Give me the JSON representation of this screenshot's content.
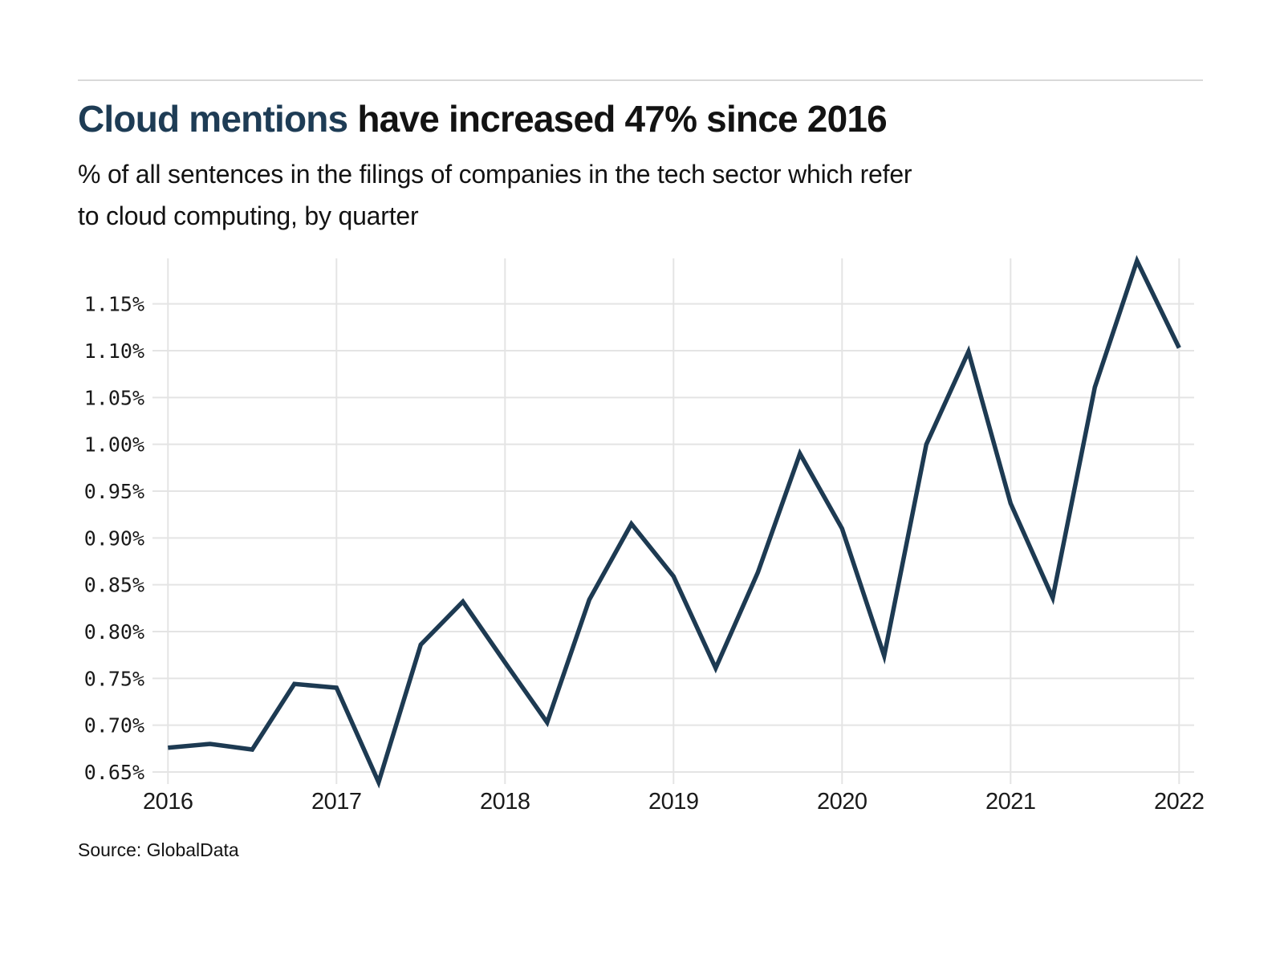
{
  "page": {
    "title_highlight": "Cloud mentions",
    "title_rest": " have increased 47% since 2016",
    "subtitle_line1": "% of all sentences in the filings of companies in the tech sector which refer",
    "subtitle_line2": "to cloud computing, by quarter",
    "source": "Source: GlobalData"
  },
  "colors": {
    "accent_navy": "#1e3c55",
    "line": "#1d3a52",
    "grid": "#e4e4e4",
    "divider": "#d9d9d9",
    "text": "#131313"
  },
  "chart_data": {
    "type": "line",
    "title": "Cloud mentions have increased 47% since 2016",
    "subtitle": "% of all sentences in the filings of companies in the tech sector which refer to cloud computing, by quarter",
    "source": "Source: GlobalData",
    "unit": "%",
    "x": [
      "2016 Q1",
      "2016 Q2",
      "2016 Q3",
      "2016 Q4",
      "2017 Q1",
      "2017 Q2",
      "2017 Q3",
      "2017 Q4",
      "2018 Q1",
      "2018 Q2",
      "2018 Q3",
      "2018 Q4",
      "2019 Q1",
      "2019 Q2",
      "2019 Q3",
      "2019 Q4",
      "2020 Q1",
      "2020 Q2",
      "2020 Q3",
      "2020 Q4",
      "2021 Q1",
      "2021 Q2",
      "2021 Q3",
      "2021 Q4",
      "2022 Q1"
    ],
    "values": [
      0.676,
      0.68,
      0.674,
      0.744,
      0.74,
      0.639,
      0.786,
      0.832,
      0.767,
      0.703,
      0.834,
      0.915,
      0.859,
      0.761,
      0.863,
      0.99,
      0.91,
      0.774,
      1.0,
      1.099,
      0.937,
      0.836,
      1.061,
      1.196,
      1.103
    ],
    "x_tick_labels": [
      "2016",
      "2017",
      "2018",
      "2019",
      "2020",
      "2021",
      "2022"
    ],
    "y_tick_values": [
      1.15,
      1.1,
      1.05,
      1.0,
      0.95,
      0.9,
      0.85,
      0.8,
      0.75,
      0.7,
      0.65
    ],
    "y_tick_labels": [
      "1.15%",
      "1.10%",
      "1.05%",
      "1.00%",
      "0.95%",
      "0.90%",
      "0.85%",
      "0.80%",
      "0.75%",
      "0.70%",
      "0.65%"
    ],
    "ylim": [
      0.637,
      1.199
    ],
    "xlabel": "",
    "ylabel": "",
    "grid": true,
    "legend": "none",
    "line_color": "#1d3a52"
  }
}
